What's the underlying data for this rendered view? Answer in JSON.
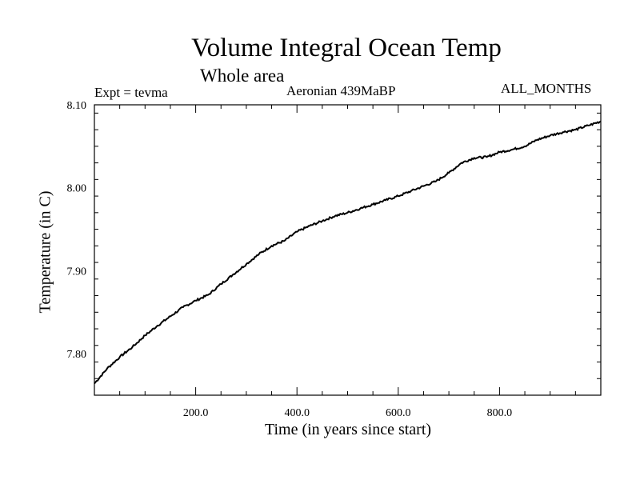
{
  "chart_data": {
    "type": "line",
    "title": "Volume Integral Ocean Temp",
    "subtitle": "Whole area",
    "annotations": {
      "left": "Expt = tevma",
      "center": "Aeronian 439MaBP",
      "right": "ALL_MONTHS"
    },
    "xlabel": "Time (in years since start)",
    "ylabel": "Temperature (in C)",
    "xlim": [
      0,
      1000
    ],
    "ylim": [
      7.75,
      8.1
    ],
    "x_ticks": [
      200,
      400,
      600,
      800
    ],
    "x_tick_labels": [
      "200.0",
      "400.0",
      "600.0",
      "800.0"
    ],
    "y_ticks": [
      7.8,
      7.9,
      8.0,
      8.1
    ],
    "y_tick_labels": [
      "7.80",
      "7.90",
      "8.00",
      "8.10"
    ],
    "series": [
      {
        "name": "Volume integral ocean temperature",
        "x": [
          0,
          25,
          50,
          75,
          100,
          125,
          150,
          175,
          200,
          225,
          250,
          275,
          300,
          325,
          350,
          375,
          400,
          425,
          450,
          475,
          500,
          525,
          550,
          575,
          600,
          625,
          650,
          675,
          700,
          725,
          750,
          775,
          800,
          825,
          850,
          875,
          900,
          925,
          950,
          975,
          1000
        ],
        "y": [
          7.764,
          7.782,
          7.796,
          7.808,
          7.822,
          7.834,
          7.845,
          7.856,
          7.864,
          7.871,
          7.884,
          7.896,
          7.908,
          7.92,
          7.93,
          7.936,
          7.947,
          7.954,
          7.96,
          7.966,
          7.97,
          7.975,
          7.98,
          7.985,
          7.99,
          7.996,
          8.002,
          8.008,
          8.018,
          8.03,
          8.036,
          8.037,
          8.043,
          8.046,
          8.05,
          8.058,
          8.063,
          8.067,
          8.07,
          8.075,
          8.08
        ]
      }
    ]
  }
}
